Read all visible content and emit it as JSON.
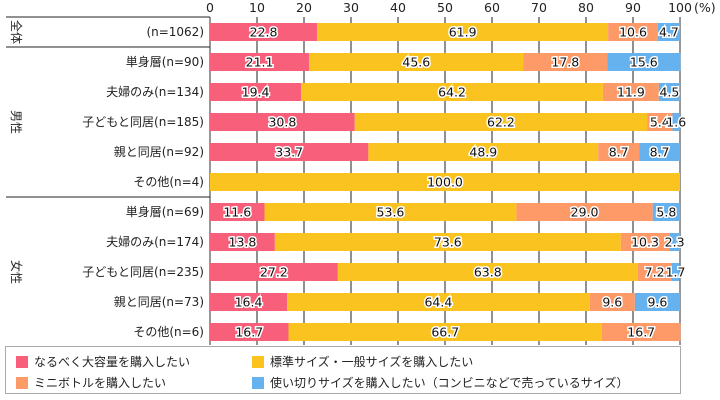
{
  "chart_data": {
    "type": "bar",
    "orientation": "horizontal",
    "stacked": true,
    "unit_label": "(%)",
    "xlim": [
      0,
      100
    ],
    "xticks": [
      0,
      10,
      20,
      30,
      40,
      50,
      60,
      70,
      80,
      90,
      100
    ],
    "grid": true,
    "legend_placement": "bottom",
    "groups": [
      {
        "name": "全体",
        "rows": [
          0
        ]
      },
      {
        "name": "男性",
        "rows": [
          1,
          2,
          3,
          4,
          5
        ]
      },
      {
        "name": "女性",
        "rows": [
          6,
          7,
          8,
          9,
          10
        ]
      }
    ],
    "categories": [
      "(n=1062)",
      "単身層(n=90)",
      "夫婦のみ(n=134)",
      "子どもと同居(n=185)",
      "親と同居(n=92)",
      "その他(n=4)",
      "単身層(n=69)",
      "夫婦のみ(n=174)",
      "子どもと同居(n=235)",
      "親と同居(n=73)",
      "その他(n=6)"
    ],
    "series": [
      {
        "name": "なるべく大容量を購入したい",
        "color": "#f75f7b",
        "values": [
          22.8,
          21.1,
          19.4,
          30.8,
          33.7,
          0,
          11.6,
          13.8,
          27.2,
          16.4,
          16.7
        ]
      },
      {
        "name": "標準サイズ・一般サイズを購入したい",
        "color": "#fbc31f",
        "values": [
          61.9,
          45.6,
          64.2,
          62.2,
          48.9,
          100.0,
          53.6,
          73.6,
          63.8,
          64.4,
          66.7
        ]
      },
      {
        "name": "ミニボトルを購入したい",
        "color": "#fd9a68",
        "values": [
          10.6,
          17.8,
          11.9,
          5.4,
          8.7,
          0,
          29.0,
          10.3,
          7.2,
          9.6,
          16.7
        ]
      },
      {
        "name": "使い切りサイズを購入したい（コンビニなどで売っているサイズ）",
        "color": "#66b2ee",
        "values": [
          4.7,
          15.6,
          4.5,
          1.6,
          8.7,
          0,
          5.8,
          2.3,
          1.7,
          9.6,
          0
        ]
      }
    ]
  }
}
